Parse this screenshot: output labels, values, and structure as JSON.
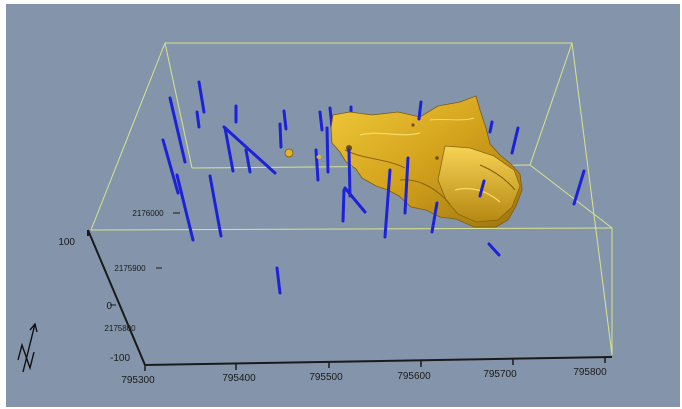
{
  "scene": {
    "background": "#8495ab",
    "bounding_box_color": "#d9e38c",
    "drillhole_color": "#1c22d8",
    "orebody_color": "#d3a21c"
  },
  "axes": {
    "x_ticks": [
      "795300",
      "795400",
      "795500",
      "795600",
      "795700",
      "795800"
    ],
    "y_ticks": [
      "2176000",
      "2175900",
      "2175800"
    ],
    "z_ticks": [
      "100",
      "0",
      "-100"
    ]
  },
  "north_arrow_icon": "north-arrow-icon",
  "orebody_icon": "orebody-solid"
}
